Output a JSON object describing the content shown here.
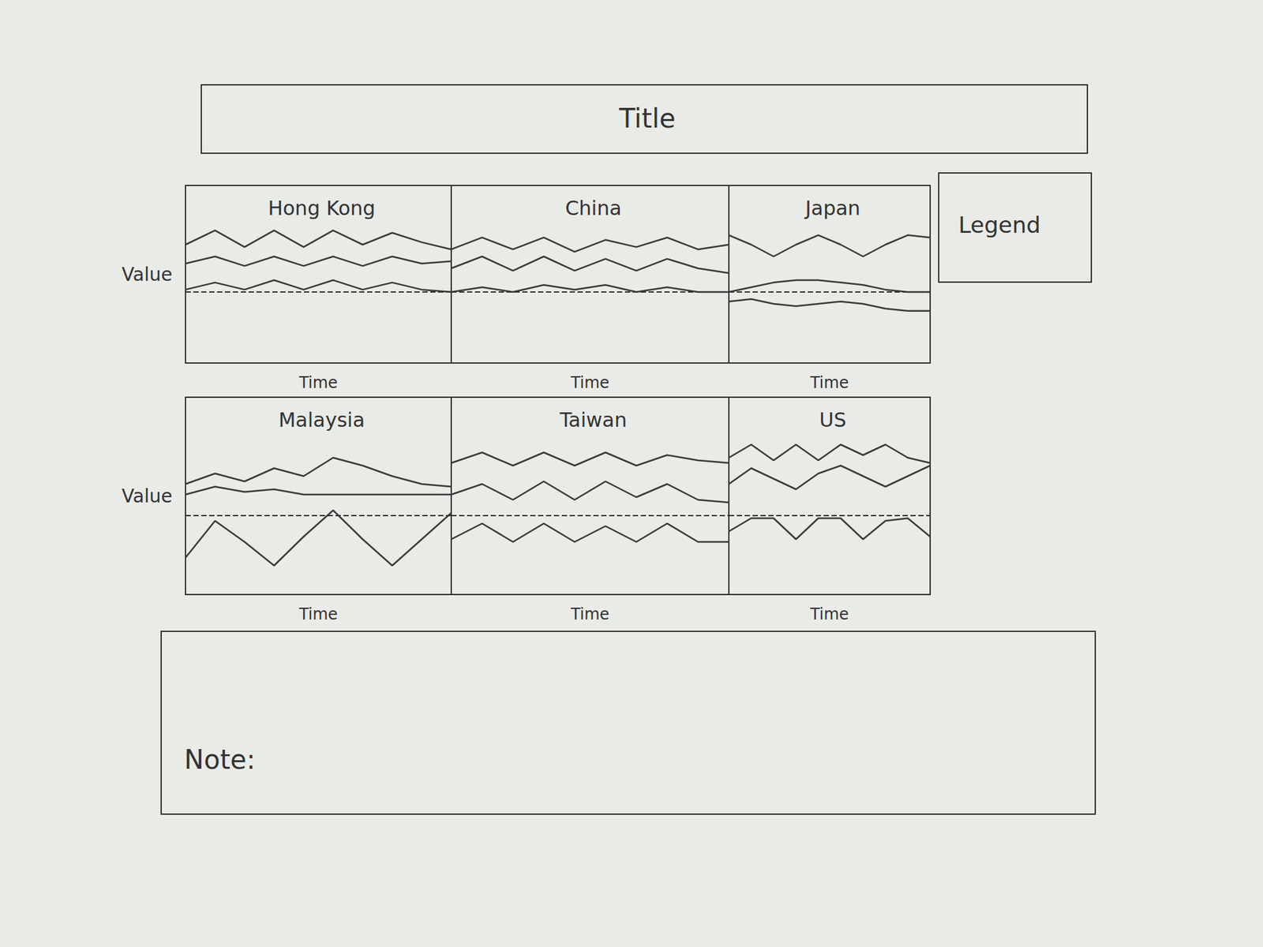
{
  "chart_data": {
    "type": "line",
    "title": "Title",
    "legend_label": "Legend",
    "legend": "upper right",
    "note": "Note:",
    "xlabel": "Time",
    "ylabel": "Value",
    "xlim": [
      1,
      10
    ],
    "ylim": [
      -3,
      4.5
    ],
    "yticks": [
      0
    ],
    "grid": true,
    "tick_labels": false,
    "x": [
      1,
      2,
      3,
      4,
      5,
      6,
      7,
      8,
      9,
      10
    ],
    "panels": [
      {
        "title": "Hong Kong",
        "series": [
          {
            "color": "#3a3a3a",
            "values": [
              2.0,
              2.6,
              1.9,
              2.6,
              1.9,
              2.6,
              2.0,
              2.5,
              2.1,
              1.8
            ]
          },
          {
            "color": "#3a3a3a",
            "values": [
              1.2,
              1.5,
              1.1,
              1.5,
              1.1,
              1.5,
              1.1,
              1.5,
              1.2,
              1.3
            ]
          },
          {
            "color": "#3a3a3a",
            "values": [
              0.1,
              0.4,
              0.1,
              0.5,
              0.1,
              0.5,
              0.1,
              0.4,
              0.1,
              0.0
            ]
          }
        ]
      },
      {
        "title": "China",
        "series": [
          {
            "color": "#3a3a3a",
            "values": [
              1.8,
              2.3,
              1.8,
              2.3,
              1.7,
              2.2,
              1.9,
              2.3,
              1.8,
              2.0
            ]
          },
          {
            "color": "#3a3a3a",
            "values": [
              1.0,
              1.5,
              0.9,
              1.5,
              0.9,
              1.4,
              0.9,
              1.4,
              1.0,
              0.8
            ]
          },
          {
            "color": "#3a3a3a",
            "values": [
              0.0,
              0.2,
              0.0,
              0.3,
              0.1,
              0.3,
              0.0,
              0.2,
              0.0,
              0.0
            ]
          }
        ]
      },
      {
        "title": "Japan",
        "series": [
          {
            "color": "#3a3a3a",
            "values": [
              2.4,
              2.0,
              1.5,
              2.0,
              2.4,
              2.0,
              1.5,
              2.0,
              2.4,
              2.3
            ]
          },
          {
            "color": "#3a3a3a",
            "values": [
              0.0,
              0.2,
              0.4,
              0.5,
              0.5,
              0.4,
              0.3,
              0.1,
              0.0,
              0.0
            ]
          },
          {
            "color": "#3a3a3a",
            "values": [
              -0.4,
              -0.3,
              -0.5,
              -0.6,
              -0.5,
              -0.4,
              -0.5,
              -0.7,
              -0.8,
              -0.8
            ]
          }
        ]
      },
      {
        "title": "Malaysia",
        "series": [
          {
            "color": "#3a3a3a",
            "values": [
              1.2,
              1.6,
              1.3,
              1.8,
              1.5,
              2.2,
              1.9,
              1.5,
              1.2,
              1.1
            ]
          },
          {
            "color": "#3a3a3a",
            "values": [
              0.8,
              1.1,
              0.9,
              1.0,
              0.8,
              0.8,
              0.8,
              0.8,
              0.8,
              0.8
            ]
          },
          {
            "color": "#3a3a3a",
            "values": [
              -1.6,
              -0.2,
              -1.0,
              -1.9,
              -0.8,
              0.2,
              -0.9,
              -1.9,
              -0.9,
              0.1
            ]
          }
        ]
      },
      {
        "title": "Taiwan",
        "series": [
          {
            "color": "#3a3a3a",
            "values": [
              2.0,
              2.4,
              1.9,
              2.4,
              1.9,
              2.4,
              1.9,
              2.3,
              2.1,
              2.0
            ]
          },
          {
            "color": "#3a3a3a",
            "values": [
              0.8,
              1.2,
              0.6,
              1.3,
              0.6,
              1.3,
              0.7,
              1.2,
              0.6,
              0.5
            ]
          },
          {
            "color": "#3a3a3a",
            "values": [
              -0.9,
              -0.3,
              -1.0,
              -0.3,
              -1.0,
              -0.4,
              -1.0,
              -0.3,
              -1.0,
              -1.0
            ]
          }
        ]
      },
      {
        "title": "US",
        "series": [
          {
            "color": "#3a3a3a",
            "values": [
              2.2,
              2.7,
              2.1,
              2.7,
              2.1,
              2.7,
              2.3,
              2.7,
              2.2,
              2.0
            ]
          },
          {
            "color": "#3a3a3a",
            "values": [
              1.2,
              1.8,
              1.4,
              1.0,
              1.6,
              1.9,
              1.5,
              1.1,
              1.5,
              1.9
            ]
          },
          {
            "color": "#3a3a3a",
            "values": [
              -0.6,
              -0.1,
              -0.1,
              -0.9,
              -0.1,
              -0.1,
              -0.9,
              -0.2,
              -0.1,
              -0.8
            ]
          }
        ]
      }
    ]
  }
}
